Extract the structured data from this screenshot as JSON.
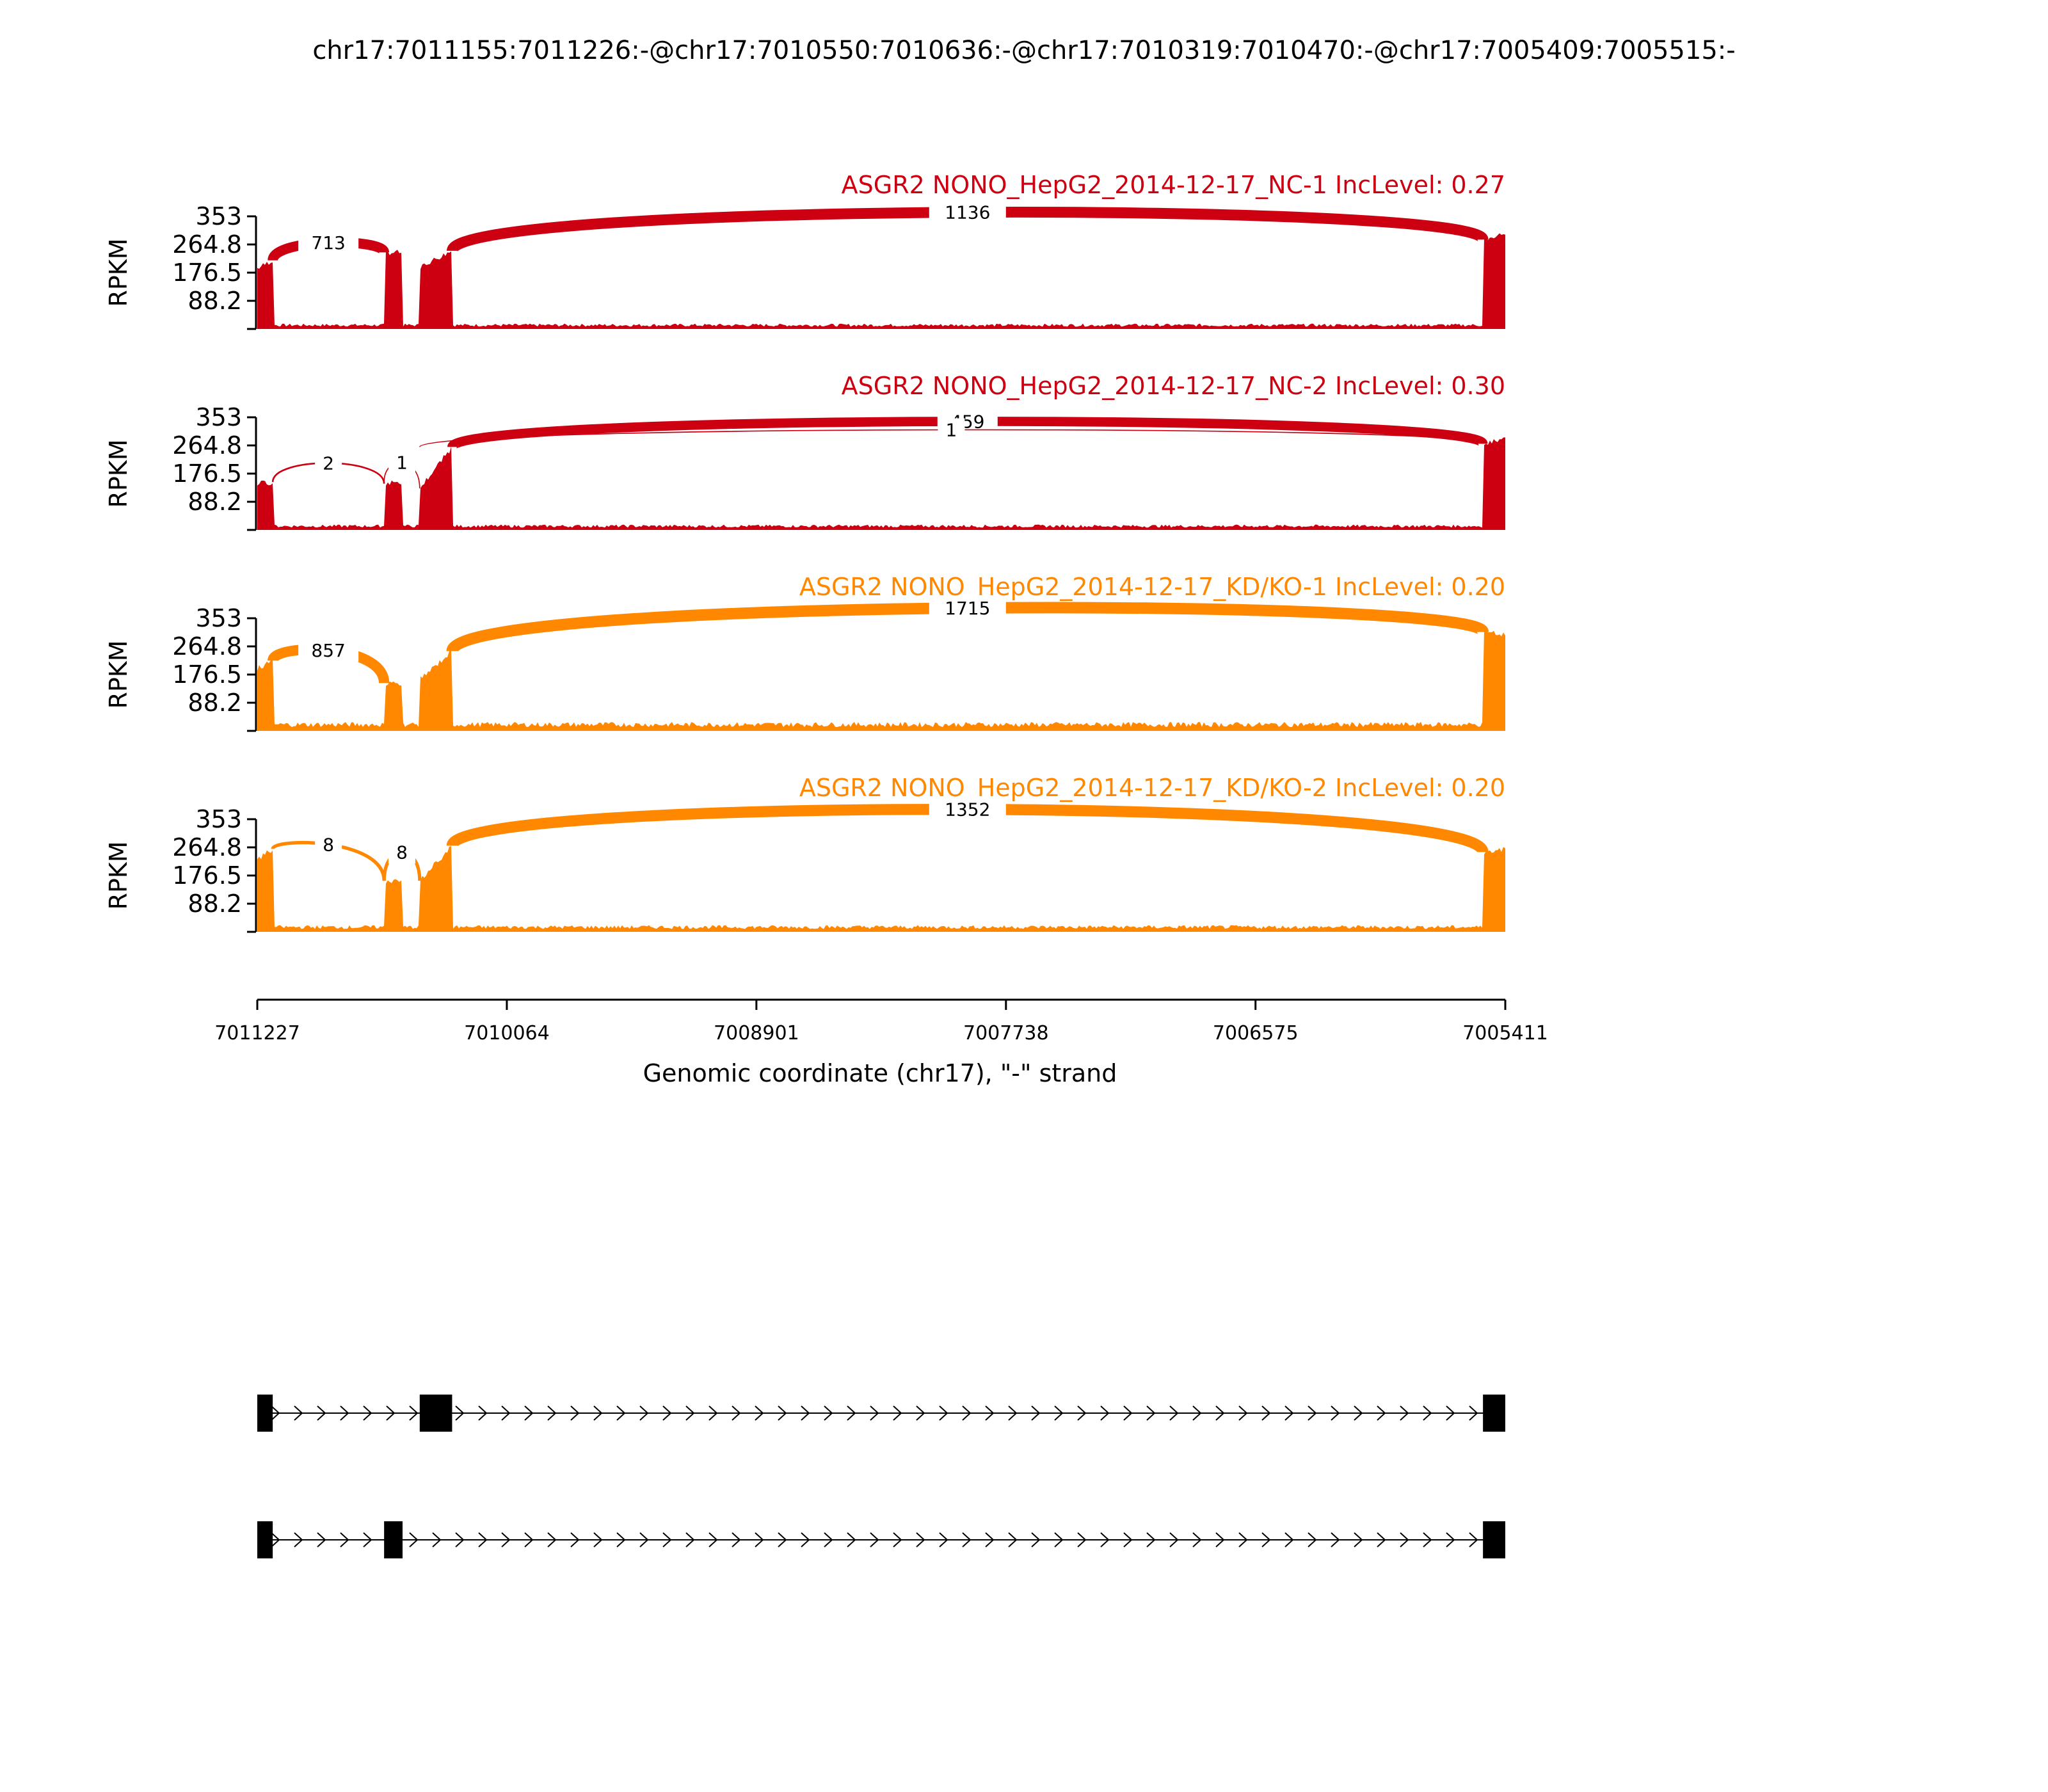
{
  "title": "chr17:7011155:7011226:-@chr17:7010550:7010636:-@chr17:7010319:7010470:-@chr17:7005409:7005515:-",
  "chart_data": {
    "type": "area",
    "chart_kind": "sashimi",
    "xlabel": "Genomic coordinate (chr17), \"-\" strand",
    "ylabel": "RPKM",
    "xlim": [
      7011227,
      7005411
    ],
    "x_reversed": true,
    "ylim": [
      0,
      353
    ],
    "yticks": [
      "88.2",
      "176.5",
      "264.8",
      "353"
    ],
    "xticks": [
      "7011227",
      "7010064",
      "7008901",
      "7007738",
      "7006575",
      "7005411"
    ],
    "exons": [
      {
        "start": 7011226,
        "end": 7011155
      },
      {
        "start": 7010636,
        "end": 7010550
      },
      {
        "start": 7010470,
        "end": 7010319
      },
      {
        "start": 7005515,
        "end": 7005409
      }
    ],
    "panels": [
      {
        "label": "ASGR2 NONO_HepG2_2014-12-17_NC-1 IncLevel: 0.27",
        "color": "#cc0011",
        "exon_heights": [
          {
            "from": 7011227,
            "to": 7011155,
            "start": 190,
            "end": 215
          },
          {
            "from": 7010636,
            "to": 7010550,
            "start": 240,
            "end": 240
          },
          {
            "from": 7010470,
            "to": 7010319,
            "start": 195,
            "end": 245
          },
          {
            "from": 7005515,
            "to": 7005411,
            "start": 280,
            "end": 300
          }
        ],
        "intron_level": 12,
        "junctions": [
          {
            "from": 7011155,
            "to": 7010636,
            "reads": "713",
            "arc": "above",
            "peak": 285
          },
          {
            "from": 7010319,
            "to": 7005515,
            "reads": "1136",
            "arc": "above",
            "peak": 400
          }
        ]
      },
      {
        "label": "ASGR2 NONO_HepG2_2014-12-17_NC-2 IncLevel: 0.30",
        "color": "#cc0011",
        "exon_heights": [
          {
            "from": 7011227,
            "to": 7011155,
            "start": 145,
            "end": 150
          },
          {
            "from": 7010636,
            "to": 7010550,
            "start": 145,
            "end": 150
          },
          {
            "from": 7010470,
            "to": 7010319,
            "start": 130,
            "end": 260
          },
          {
            "from": 7005515,
            "to": 7005411,
            "start": 270,
            "end": 290
          }
        ],
        "intron_level": 12,
        "junctions": [
          {
            "from": 7011155,
            "to": 7010636,
            "reads": "2",
            "arc": "above",
            "peak": 230
          },
          {
            "from": 7010636,
            "to": 7010470,
            "reads": "1",
            "arc": "above",
            "peak": 235
          },
          {
            "from": 7010319,
            "to": 7005515,
            "reads": "459",
            "arc": "above",
            "peak": 365
          },
          {
            "from": 7010470,
            "to": 7005515,
            "reads": "1",
            "arc": "above",
            "peak": 330
          }
        ]
      },
      {
        "label": "ASGR2 NONO_HepG2_2014-12-17_KD/KO-1 IncLevel: 0.20",
        "color": "#ff8800",
        "exon_heights": [
          {
            "from": 7011227,
            "to": 7011155,
            "start": 195,
            "end": 220
          },
          {
            "from": 7010636,
            "to": 7010550,
            "start": 150,
            "end": 150
          },
          {
            "from": 7010470,
            "to": 7010319,
            "start": 160,
            "end": 250
          },
          {
            "from": 7005515,
            "to": 7005411,
            "start": 310,
            "end": 300
          }
        ],
        "intron_level": 20,
        "junctions": [
          {
            "from": 7011155,
            "to": 7010636,
            "reads": "857",
            "arc": "above",
            "peak": 275
          },
          {
            "from": 7010319,
            "to": 7005515,
            "reads": "1715",
            "arc": "above",
            "peak": 420
          }
        ]
      },
      {
        "label": "ASGR2 NONO_HepG2_2014-12-17_KD/KO-2 IncLevel: 0.20",
        "color": "#ff8800",
        "exon_heights": [
          {
            "from": 7011227,
            "to": 7011155,
            "start": 225,
            "end": 260
          },
          {
            "from": 7010636,
            "to": 7010550,
            "start": 160,
            "end": 160
          },
          {
            "from": 7010470,
            "to": 7010319,
            "start": 160,
            "end": 270
          },
          {
            "from": 7005515,
            "to": 7005411,
            "start": 250,
            "end": 260
          }
        ],
        "intron_level": 15,
        "junctions": [
          {
            "from": 7011155,
            "to": 7010636,
            "reads": "8",
            "arc": "above",
            "peak": 295
          },
          {
            "from": 7010636,
            "to": 7010470,
            "reads": "8",
            "arc": "above",
            "peak": 280
          },
          {
            "from": 7010319,
            "to": 7005515,
            "reads": "1352",
            "arc": "above",
            "peak": 425
          }
        ]
      }
    ],
    "isoforms": [
      {
        "exons": [
          [
            7011227,
            7011155
          ],
          [
            7010470,
            7010319
          ],
          [
            7005515,
            7005411
          ]
        ]
      },
      {
        "exons": [
          [
            7011227,
            7011155
          ],
          [
            7010636,
            7010550
          ],
          [
            7005515,
            7005411
          ]
        ]
      }
    ]
  }
}
